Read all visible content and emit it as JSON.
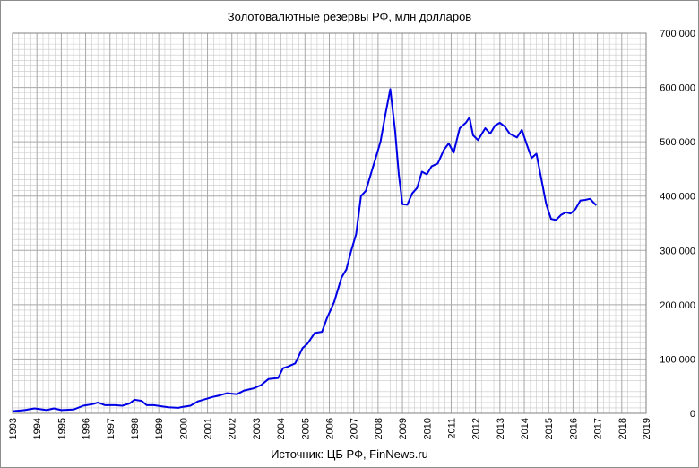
{
  "chart_data": {
    "type": "line",
    "title": "Золотовалютные резервы РФ, млн долларов",
    "source": "Источник: ЦБ РФ, FinNews.ru",
    "xlabel": "",
    "ylabel": "",
    "xlim": [
      1993,
      2019
    ],
    "ylim": [
      0,
      700000
    ],
    "y_axis_side": "right",
    "grid": true,
    "legend": "none",
    "line_color": "#0000e6",
    "grid_color": "#a8a8a8",
    "x_ticks": [
      "1993",
      "1994",
      "1995",
      "1996",
      "1997",
      "1998",
      "1999",
      "2000",
      "2001",
      "2002",
      "2003",
      "2004",
      "2005",
      "2006",
      "2007",
      "2008",
      "2009",
      "2010",
      "2011",
      "2012",
      "2013",
      "2014",
      "2015",
      "2016",
      "2017",
      "2018",
      "2019"
    ],
    "y_ticks": [
      {
        "value": 0,
        "label": "0"
      },
      {
        "value": 100000,
        "label": "100 000"
      },
      {
        "value": 200000,
        "label": "200 000"
      },
      {
        "value": 300000,
        "label": "300 000"
      },
      {
        "value": 400000,
        "label": "400 000"
      },
      {
        "value": 500000,
        "label": "500 000"
      },
      {
        "value": 600000,
        "label": "600 000"
      },
      {
        "value": 700000,
        "label": "700 000"
      }
    ],
    "series": [
      {
        "points": [
          [
            1993.0,
            4000
          ],
          [
            1993.5,
            6000
          ],
          [
            1993.9,
            9000
          ],
          [
            1994.4,
            6000
          ],
          [
            1994.7,
            9000
          ],
          [
            1995.0,
            6000
          ],
          [
            1995.5,
            7000
          ],
          [
            1995.9,
            14000
          ],
          [
            1996.3,
            17000
          ],
          [
            1996.5,
            20000
          ],
          [
            1996.8,
            15000
          ],
          [
            1997.2,
            15000
          ],
          [
            1997.5,
            14000
          ],
          [
            1997.8,
            18000
          ],
          [
            1998.0,
            25000
          ],
          [
            1998.3,
            23000
          ],
          [
            1998.5,
            15000
          ],
          [
            1998.8,
            15000
          ],
          [
            1999.1,
            13000
          ],
          [
            1999.4,
            11000
          ],
          [
            1999.8,
            10000
          ],
          [
            2000.0,
            12000
          ],
          [
            2000.3,
            14000
          ],
          [
            2000.6,
            22000
          ],
          [
            2000.9,
            26000
          ],
          [
            2001.2,
            30000
          ],
          [
            2001.5,
            33000
          ],
          [
            2001.8,
            37000
          ],
          [
            2002.2,
            35000
          ],
          [
            2002.5,
            42000
          ],
          [
            2002.9,
            46000
          ],
          [
            2003.2,
            52000
          ],
          [
            2003.5,
            63000
          ],
          [
            2003.9,
            65000
          ],
          [
            2004.1,
            83000
          ],
          [
            2004.3,
            86000
          ],
          [
            2004.6,
            92000
          ],
          [
            2004.9,
            120000
          ],
          [
            2005.1,
            128000
          ],
          [
            2005.4,
            148000
          ],
          [
            2005.7,
            150000
          ],
          [
            2005.9,
            175000
          ],
          [
            2006.2,
            205000
          ],
          [
            2006.5,
            250000
          ],
          [
            2006.7,
            265000
          ],
          [
            2006.9,
            300000
          ],
          [
            2007.1,
            330000
          ],
          [
            2007.3,
            400000
          ],
          [
            2007.5,
            410000
          ],
          [
            2007.7,
            440000
          ],
          [
            2007.9,
            470000
          ],
          [
            2008.1,
            500000
          ],
          [
            2008.3,
            550000
          ],
          [
            2008.5,
            597000
          ],
          [
            2008.7,
            520000
          ],
          [
            2008.85,
            440000
          ],
          [
            2009.0,
            385000
          ],
          [
            2009.2,
            384000
          ],
          [
            2009.4,
            405000
          ],
          [
            2009.6,
            415000
          ],
          [
            2009.8,
            445000
          ],
          [
            2010.0,
            440000
          ],
          [
            2010.2,
            455000
          ],
          [
            2010.45,
            460000
          ],
          [
            2010.7,
            485000
          ],
          [
            2010.9,
            497000
          ],
          [
            2011.1,
            480000
          ],
          [
            2011.35,
            525000
          ],
          [
            2011.6,
            535000
          ],
          [
            2011.75,
            545000
          ],
          [
            2011.9,
            512000
          ],
          [
            2012.1,
            503000
          ],
          [
            2012.4,
            525000
          ],
          [
            2012.6,
            515000
          ],
          [
            2012.8,
            530000
          ],
          [
            2013.0,
            535000
          ],
          [
            2013.2,
            528000
          ],
          [
            2013.4,
            515000
          ],
          [
            2013.7,
            508000
          ],
          [
            2013.9,
            522000
          ],
          [
            2014.1,
            495000
          ],
          [
            2014.3,
            470000
          ],
          [
            2014.5,
            478000
          ],
          [
            2014.75,
            420000
          ],
          [
            2014.9,
            385000
          ],
          [
            2015.1,
            358000
          ],
          [
            2015.3,
            356000
          ],
          [
            2015.5,
            365000
          ],
          [
            2015.7,
            370000
          ],
          [
            2015.9,
            368000
          ],
          [
            2016.1,
            376000
          ],
          [
            2016.3,
            392000
          ],
          [
            2016.5,
            393000
          ],
          [
            2016.7,
            395000
          ],
          [
            2016.8,
            390000
          ],
          [
            2016.95,
            383000
          ]
        ]
      }
    ]
  }
}
